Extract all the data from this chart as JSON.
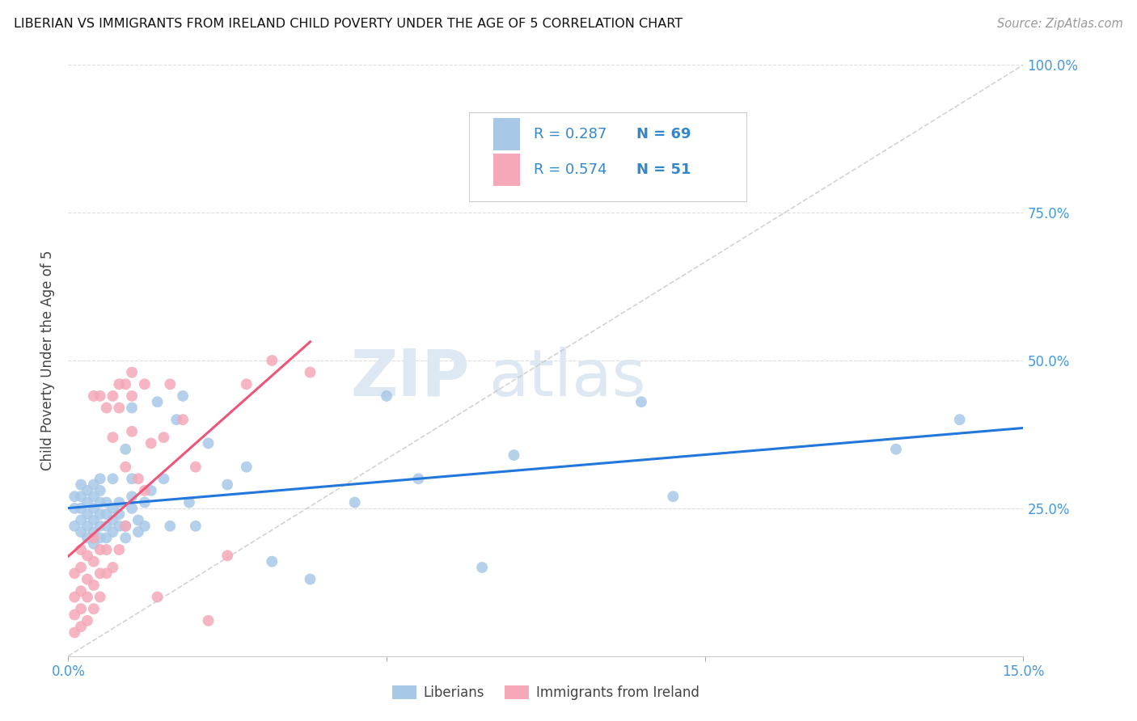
{
  "title": "LIBERIAN VS IMMIGRANTS FROM IRELAND CHILD POVERTY UNDER THE AGE OF 5 CORRELATION CHART",
  "source": "Source: ZipAtlas.com",
  "ylabel_label": "Child Poverty Under the Age of 5",
  "x_min": 0.0,
  "x_max": 0.15,
  "y_min": 0.0,
  "y_max": 1.0,
  "liberian_color": "#a8c8e8",
  "ireland_color": "#f4a8b8",
  "liberian_line_color": "#2277dd",
  "ireland_line_color": "#ee5577",
  "diag_line_color": "#c8c8c8",
  "legend_label1": "Liberians",
  "legend_label2": "Immigrants from Ireland",
  "watermark_zip": "ZIP",
  "watermark_atlas": "atlas",
  "background_color": "#ffffff",
  "grid_color": "#dddddd",
  "liberian_x": [
    0.001,
    0.001,
    0.001,
    0.002,
    0.002,
    0.002,
    0.002,
    0.002,
    0.003,
    0.003,
    0.003,
    0.003,
    0.003,
    0.004,
    0.004,
    0.004,
    0.004,
    0.004,
    0.004,
    0.005,
    0.005,
    0.005,
    0.005,
    0.005,
    0.005,
    0.006,
    0.006,
    0.006,
    0.006,
    0.007,
    0.007,
    0.007,
    0.007,
    0.008,
    0.008,
    0.008,
    0.009,
    0.009,
    0.009,
    0.01,
    0.01,
    0.01,
    0.01,
    0.011,
    0.011,
    0.012,
    0.012,
    0.013,
    0.014,
    0.015,
    0.016,
    0.017,
    0.018,
    0.019,
    0.02,
    0.022,
    0.025,
    0.028,
    0.032,
    0.038,
    0.045,
    0.05,
    0.055,
    0.065,
    0.07,
    0.09,
    0.095,
    0.13,
    0.14
  ],
  "liberian_y": [
    0.22,
    0.25,
    0.27,
    0.21,
    0.23,
    0.25,
    0.27,
    0.29,
    0.2,
    0.22,
    0.24,
    0.26,
    0.28,
    0.19,
    0.21,
    0.23,
    0.25,
    0.27,
    0.29,
    0.2,
    0.22,
    0.24,
    0.26,
    0.28,
    0.3,
    0.2,
    0.22,
    0.24,
    0.26,
    0.21,
    0.23,
    0.25,
    0.3,
    0.22,
    0.24,
    0.26,
    0.2,
    0.22,
    0.35,
    0.25,
    0.27,
    0.3,
    0.42,
    0.21,
    0.23,
    0.22,
    0.26,
    0.28,
    0.43,
    0.3,
    0.22,
    0.4,
    0.44,
    0.26,
    0.22,
    0.36,
    0.29,
    0.32,
    0.16,
    0.13,
    0.26,
    0.44,
    0.3,
    0.15,
    0.34,
    0.43,
    0.27,
    0.35,
    0.4
  ],
  "ireland_x": [
    0.001,
    0.001,
    0.001,
    0.001,
    0.002,
    0.002,
    0.002,
    0.002,
    0.002,
    0.003,
    0.003,
    0.003,
    0.003,
    0.004,
    0.004,
    0.004,
    0.004,
    0.004,
    0.005,
    0.005,
    0.005,
    0.005,
    0.006,
    0.006,
    0.006,
    0.007,
    0.007,
    0.007,
    0.008,
    0.008,
    0.008,
    0.009,
    0.009,
    0.009,
    0.01,
    0.01,
    0.01,
    0.011,
    0.012,
    0.012,
    0.013,
    0.014,
    0.015,
    0.016,
    0.018,
    0.02,
    0.022,
    0.025,
    0.028,
    0.032,
    0.038
  ],
  "ireland_y": [
    0.04,
    0.07,
    0.1,
    0.14,
    0.05,
    0.08,
    0.11,
    0.15,
    0.18,
    0.06,
    0.1,
    0.13,
    0.17,
    0.08,
    0.12,
    0.16,
    0.2,
    0.44,
    0.1,
    0.14,
    0.18,
    0.44,
    0.14,
    0.18,
    0.42,
    0.15,
    0.37,
    0.44,
    0.18,
    0.42,
    0.46,
    0.22,
    0.32,
    0.46,
    0.38,
    0.44,
    0.48,
    0.3,
    0.28,
    0.46,
    0.36,
    0.1,
    0.37,
    0.46,
    0.4,
    0.32,
    0.06,
    0.17,
    0.46,
    0.5,
    0.48
  ]
}
